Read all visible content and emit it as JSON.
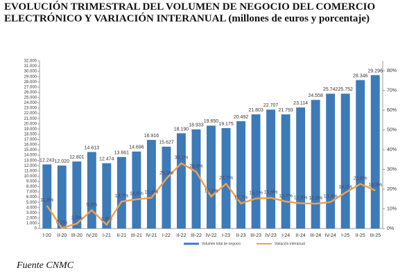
{
  "chart_data": {
    "type": "bar_line",
    "title": "EVOLUCIÓN TRIMESTRAL DEL VOLUMEN DE NEGOCIO DEL COMERCIO ELECTRÓNICO Y VARIACIÓN INTERANUAL (millones de euros y porcentaje)",
    "source": "Fuente CNMC",
    "categories": [
      "I-20",
      "II-20",
      "III-20",
      "IV-20",
      "I-21",
      "II-21",
      "III-21",
      "IV-21",
      "I-22",
      "II-22",
      "III-22",
      "IV-22",
      "I-23",
      "II-23",
      "III-23",
      "IV-23",
      "I-24",
      "II-24",
      "III-24",
      "IV-24",
      "I-25",
      "II-25",
      "III-25"
    ],
    "series": [
      {
        "name": "Volumen total de negocio",
        "color": "#3d7ab8",
        "values": [
          12243,
          12020,
          12801,
          14613,
          12474,
          13661,
          14696,
          16916,
          15627,
          18190,
          18933,
          19650,
          19175,
          20492,
          21803,
          22707,
          21793,
          23114,
          24558,
          25742,
          25752,
          28346,
          29296
        ],
        "value_labels": [
          "12.243",
          "12.020",
          "12.801",
          "14.613",
          "12.474",
          "13.661",
          "14.696",
          "16.916",
          "15.627",
          "18.190",
          "18.933",
          "19.650",
          "19.175",
          "20.492",
          "21.803",
          "22.707",
          "21.793",
          "23.114",
          "24.558",
          "25.742",
          "25.752",
          "28.346",
          "29.296"
        ]
      },
      {
        "name": "Variación interanual",
        "color": "#f0a04b",
        "axis": "y2",
        "values": [
          11.6,
          0.2,
          2.5,
          9.3,
          1.9,
          13.7,
          14.8,
          15.6,
          25.3,
          33.1,
          28.8,
          16.2,
          22.7,
          12.7,
          15.2,
          15.6,
          13.7,
          12.8,
          12.6,
          13.4,
          18.2,
          22.6,
          19.3
        ],
        "value_labels": [
          "11,6%",
          "0,2%",
          "2,5%",
          "9,3%",
          "1,9%",
          "13,7%",
          "14,8%",
          "15,6%",
          "25,3%",
          "33,1%",
          "28,8%",
          "16,2%",
          "22,7%",
          "12,7%",
          "15,2%",
          "15,6%",
          "13,7%",
          "12,8%",
          "12,6%",
          "13,4%",
          "18,2%",
          "22,6%",
          "19,3%"
        ]
      }
    ],
    "ylim": [
      0,
      32000
    ],
    "yticks": [
      0,
      {
        "value": 1000,
        "label": "1.000"
      },
      {
        "value": 2000,
        "label": "2.000"
      },
      {
        "value": 3000,
        "label": "3.000"
      },
      {
        "value": 4000,
        "label": "4.000"
      },
      {
        "value": 5000,
        "label": "5.000"
      },
      {
        "value": 6000,
        "label": "6.000"
      },
      {
        "value": 7000,
        "label": "7.000"
      },
      {
        "value": 8000,
        "label": "8.000"
      },
      {
        "value": 9000,
        "label": "9.000"
      },
      {
        "value": 10000,
        "label": "10.000"
      },
      {
        "value": 11000,
        "label": "11.000"
      },
      {
        "value": 12000,
        "label": "12.000"
      },
      {
        "value": 13000,
        "label": "13.000"
      },
      {
        "value": 14000,
        "label": "14.000"
      },
      {
        "value": 15000,
        "label": "15.000"
      },
      {
        "value": 16000,
        "label": "16.000"
      },
      {
        "value": 17000,
        "label": "17.000"
      },
      {
        "value": 18000,
        "label": "18.000"
      },
      {
        "value": 19000,
        "label": "19.000"
      },
      {
        "value": 20000,
        "label": "20.000"
      },
      {
        "value": 21000,
        "label": "21.000"
      },
      {
        "value": 22000,
        "label": "22.000"
      },
      {
        "value": 23000,
        "label": "23.000"
      },
      {
        "value": 24000,
        "label": "24.000"
      },
      {
        "value": 25000,
        "label": "25.000"
      },
      {
        "value": 26000,
        "label": "26.000"
      },
      {
        "value": 27000,
        "label": "27.000"
      },
      {
        "value": 28000,
        "label": "28.000"
      },
      {
        "value": 29000,
        "label": "29.000"
      },
      {
        "value": 30000,
        "label": "30.000"
      },
      {
        "value": 31000,
        "label": "31.000"
      },
      {
        "value": 32000,
        "label": "32.000"
      }
    ],
    "y2lim": [
      0,
      85
    ],
    "y2ticks": [
      {
        "value": 0,
        "label": "0%"
      },
      {
        "value": 10,
        "label": "10%"
      },
      {
        "value": 20,
        "label": "20%"
      },
      {
        "value": 30,
        "label": "30%"
      },
      {
        "value": 40,
        "label": "40%"
      },
      {
        "value": 50,
        "label": "50%"
      },
      {
        "value": 60,
        "label": "60%"
      },
      {
        "value": 70,
        "label": "70%"
      },
      {
        "value": 80,
        "label": "80%"
      }
    ]
  }
}
